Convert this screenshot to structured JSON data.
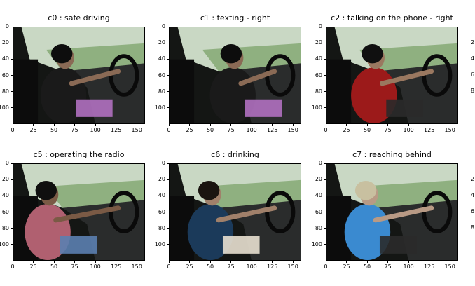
{
  "panels": [
    {
      "id": "c0",
      "title": "c0 : safe driving"
    },
    {
      "id": "c1",
      "title": "c1 : texting - right"
    },
    {
      "id": "c2",
      "title": "c2 : talking on the phone - right"
    },
    {
      "id": "c5",
      "title": "c5 : operating the radio"
    },
    {
      "id": "c6",
      "title": "c6 : drinking"
    },
    {
      "id": "c7",
      "title": "c7 : reaching behind"
    }
  ],
  "x_ticks": [
    "0",
    "25",
    "50",
    "75",
    "100",
    "125",
    "150"
  ],
  "y_ticks": [
    "0",
    "20",
    "40",
    "60",
    "80",
    "100"
  ],
  "clipped_right_labels": [
    "2",
    "4",
    "6",
    "8"
  ],
  "colors": {
    "background": "#ffffff",
    "axis": "#000000"
  }
}
